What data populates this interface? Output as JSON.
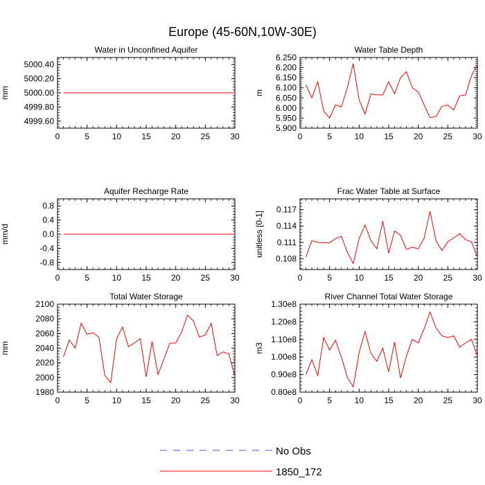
{
  "title": "Europe (45-60N,10W-30E)",
  "colors": {
    "model": "#ff0000",
    "obs": "#3b5bd6",
    "axis": "#000000"
  },
  "legend": [
    {
      "label": "No Obs",
      "style": "dashed",
      "color": "#3b5bd6"
    },
    {
      "label": "1850_172",
      "style": "solid",
      "color": "#ff0000"
    }
  ],
  "chart_data": [
    {
      "type": "line",
      "title": "Water in Unconfined Aquifer",
      "xlabel": "",
      "ylabel": "mm",
      "xlim": [
        0,
        30
      ],
      "ylim": [
        4999.5,
        5000.5
      ],
      "xticks": [
        0,
        5,
        10,
        15,
        20,
        25,
        30
      ],
      "yticks": [
        4999.6,
        4999.8,
        5000.0,
        5000.2,
        5000.4
      ],
      "ytick_labels": [
        "4999.60",
        "4999.80",
        "5000.00",
        "5000.20",
        "5000.40"
      ],
      "series": [
        {
          "name": "1850_172",
          "x": [
            1,
            30
          ],
          "values": [
            5000.0,
            5000.0
          ]
        }
      ]
    },
    {
      "type": "line",
      "title": "Water Table Depth",
      "xlabel": "",
      "ylabel": "m",
      "xlim": [
        0,
        30
      ],
      "ylim": [
        5.9,
        6.25
      ],
      "xticks": [
        0,
        5,
        10,
        15,
        20,
        25,
        30
      ],
      "yticks": [
        5.9,
        5.95,
        6.0,
        6.05,
        6.1,
        6.15,
        6.2,
        6.25
      ],
      "ytick_labels": [
        "5.900",
        "5.950",
        "6.000",
        "6.050",
        "6.100",
        "6.150",
        "6.200",
        "6.250"
      ],
      "series": [
        {
          "name": "1850_172",
          "x": [
            1,
            2,
            3,
            4,
            5,
            6,
            7,
            8,
            9,
            10,
            11,
            12,
            13,
            14,
            15,
            16,
            17,
            18,
            19,
            20,
            21,
            22,
            23,
            24,
            25,
            26,
            27,
            28,
            29,
            30
          ],
          "values": [
            6.115,
            6.05,
            6.13,
            5.985,
            5.95,
            6.015,
            6.005,
            6.1,
            6.22,
            6.04,
            5.97,
            6.07,
            6.065,
            6.065,
            6.13,
            6.07,
            6.15,
            6.18,
            6.1,
            6.08,
            6.015,
            5.952,
            5.958,
            6.008,
            6.015,
            5.99,
            6.06,
            6.065,
            6.16,
            6.215
          ]
        }
      ]
    },
    {
      "type": "line",
      "title": "Aquifer Recharge Rate",
      "xlabel": "",
      "ylabel": "mm/d",
      "xlim": [
        0,
        30
      ],
      "ylim": [
        -1.0,
        1.0
      ],
      "xticks": [
        0,
        5,
        10,
        15,
        20,
        25,
        30
      ],
      "yticks": [
        -0.8,
        -0.4,
        0.0,
        0.4,
        0.8
      ],
      "ytick_labels": [
        "-0.8",
        "-0.4",
        "0.0",
        "0.4",
        "0.8"
      ],
      "series": [
        {
          "name": "1850_172",
          "x": [
            1,
            30
          ],
          "values": [
            0.0,
            0.0
          ]
        }
      ]
    },
    {
      "type": "line",
      "title": "Frac Water Table at Surface",
      "xlabel": "",
      "ylabel": "unitless [0-1]",
      "xlim": [
        0,
        30
      ],
      "ylim": [
        0.106,
        0.119
      ],
      "xticks": [
        0,
        5,
        10,
        15,
        20,
        25,
        30
      ],
      "yticks": [
        0.108,
        0.111,
        0.114,
        0.117
      ],
      "ytick_labels": [
        "0.108",
        "0.111",
        "0.114",
        "0.117"
      ],
      "series": [
        {
          "name": "1850_172",
          "x": [
            1,
            2,
            3,
            4,
            5,
            6,
            7,
            8,
            9,
            10,
            11,
            12,
            13,
            14,
            15,
            16,
            17,
            18,
            19,
            20,
            21,
            22,
            23,
            24,
            25,
            26,
            27,
            28,
            29,
            30
          ],
          "values": [
            0.1083,
            0.1113,
            0.111,
            0.1109,
            0.1109,
            0.1117,
            0.1121,
            0.1092,
            0.1071,
            0.1117,
            0.1142,
            0.1113,
            0.1098,
            0.1149,
            0.109,
            0.1131,
            0.1123,
            0.1097,
            0.1101,
            0.1098,
            0.1118,
            0.1167,
            0.1113,
            0.1095,
            0.1111,
            0.1118,
            0.1126,
            0.1115,
            0.1111,
            0.1083
          ]
        }
      ]
    },
    {
      "type": "line",
      "title": "Total Water Storage",
      "xlabel": "",
      "ylabel": "mm",
      "xlim": [
        0,
        30
      ],
      "ylim": [
        1980,
        2100
      ],
      "xticks": [
        0,
        5,
        10,
        15,
        20,
        25,
        30
      ],
      "yticks": [
        1980,
        2000,
        2020,
        2040,
        2060,
        2080,
        2100
      ],
      "ytick_labels": [
        "1980",
        "2000",
        "2020",
        "2040",
        "2060",
        "2080",
        "2100"
      ],
      "series": [
        {
          "name": "1850_172",
          "x": [
            1,
            2,
            3,
            4,
            5,
            6,
            7,
            8,
            9,
            10,
            11,
            12,
            13,
            14,
            15,
            16,
            17,
            18,
            19,
            20,
            21,
            22,
            23,
            24,
            25,
            26,
            27,
            28,
            29,
            30
          ],
          "values": [
            2028,
            2051,
            2040,
            2074,
            2059,
            2061,
            2055,
            2003,
            1993,
            2053,
            2069,
            2042,
            2047,
            2053,
            2001,
            2049,
            2004,
            2025,
            2047,
            2047,
            2062,
            2085,
            2077,
            2055,
            2058,
            2074,
            2030,
            2035,
            2032,
            2001
          ]
        }
      ]
    },
    {
      "type": "line",
      "title": "River Channel Total Water Storage",
      "xlabel": "",
      "ylabel": "m3",
      "xlim": [
        0,
        30
      ],
      "ylim": [
        80000000.0,
        130000000.0
      ],
      "xticks": [
        0,
        5,
        10,
        15,
        20,
        25,
        30
      ],
      "yticks": [
        80000000.0,
        90000000.0,
        100000000.0,
        110000000.0,
        120000000.0,
        130000000.0
      ],
      "ytick_labels": [
        "0.80e8",
        "0.90e8",
        "1.00e8",
        "1.10e8",
        "1.20e8",
        "1.30e8"
      ],
      "series": [
        {
          "name": "1850_172",
          "x": [
            1,
            2,
            3,
            4,
            5,
            6,
            7,
            8,
            9,
            10,
            11,
            12,
            13,
            14,
            15,
            16,
            17,
            18,
            19,
            20,
            21,
            22,
            23,
            24,
            25,
            26,
            27,
            28,
            29,
            30
          ],
          "values": [
            90000000.0,
            98500000.0,
            89500000.0,
            111000000.0,
            104000000.0,
            109500000.0,
            100000000.0,
            88500000.0,
            83000000.0,
            102500000.0,
            114500000.0,
            102000000.0,
            97500000.0,
            105000000.0,
            91500000.0,
            108500000.0,
            88000000.0,
            100500000.0,
            110000000.0,
            108000000.0,
            116000000.0,
            125500000.0,
            116500000.0,
            112000000.0,
            111000000.0,
            112000000.0,
            105500000.0,
            108000000.0,
            110000000.0,
            100500000.0
          ]
        }
      ]
    }
  ]
}
